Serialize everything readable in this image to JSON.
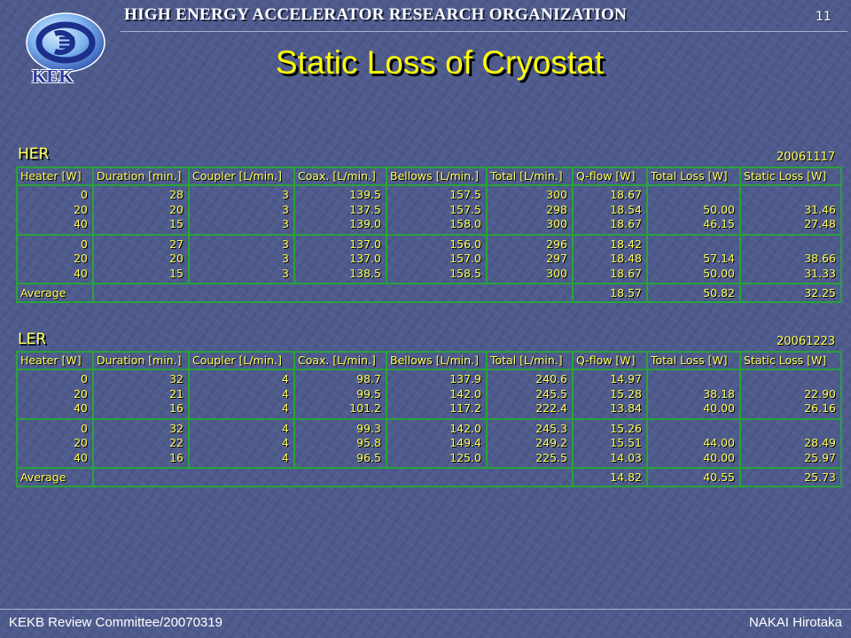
{
  "header": {
    "organization": "HIGH ENERGY ACCELERATOR RESEARCH ORGANIZATION",
    "page_number": "11",
    "logo_text": "KEK"
  },
  "title": "Static Loss of Cryostat",
  "columns": [
    "Heater [W]",
    "Duration [min.]",
    "Coupler [L/min.]",
    "Coax. [L/min.]",
    "Bellows [L/min.]",
    "Total [L/min.]",
    "Q-flow [W]",
    "Total Loss [W]",
    "Static Loss [W]"
  ],
  "her": {
    "label": "HER",
    "date": "20061117",
    "groups": [
      {
        "heater": [
          "0",
          "20",
          "40"
        ],
        "duration": [
          "28",
          "20",
          "15"
        ],
        "coupler": [
          "3",
          "3",
          "3"
        ],
        "coax": [
          "139.5",
          "137.5",
          "139.0"
        ],
        "bellows": [
          "157.5",
          "157.5",
          "158.0"
        ],
        "total": [
          "300",
          "298",
          "300"
        ],
        "qflow": [
          "18.67",
          "18.54",
          "18.67"
        ],
        "total_loss": [
          "",
          "50.00",
          "46.15"
        ],
        "static_loss": [
          "",
          "31.46",
          "27.48"
        ]
      },
      {
        "heater": [
          "0",
          "20",
          "40"
        ],
        "duration": [
          "27",
          "20",
          "15"
        ],
        "coupler": [
          "3",
          "3",
          "3"
        ],
        "coax": [
          "137.0",
          "137.0",
          "138.5"
        ],
        "bellows": [
          "156.0",
          "157.0",
          "158.5"
        ],
        "total": [
          "296",
          "297",
          "300"
        ],
        "qflow": [
          "18.42",
          "18.48",
          "18.67"
        ],
        "total_loss": [
          "",
          "57.14",
          "50.00"
        ],
        "static_loss": [
          "",
          "38.66",
          "31.33"
        ]
      }
    ],
    "average": {
      "label": "Average",
      "qflow": "18.57",
      "total_loss": "50.82",
      "static_loss": "32.25"
    }
  },
  "ler": {
    "label": "LER",
    "date": "20061223",
    "groups": [
      {
        "heater": [
          "0",
          "20",
          "40"
        ],
        "duration": [
          "32",
          "21",
          "16"
        ],
        "coupler": [
          "4",
          "4",
          "4"
        ],
        "coax": [
          "98.7",
          "99.5",
          "101.2"
        ],
        "bellows": [
          "137.9",
          "142.0",
          "117.2"
        ],
        "total": [
          "240.6",
          "245.5",
          "222.4"
        ],
        "qflow": [
          "14.97",
          "15.28",
          "13.84"
        ],
        "total_loss": [
          "",
          "38.18",
          "40.00"
        ],
        "static_loss": [
          "",
          "22.90",
          "26.16"
        ]
      },
      {
        "heater": [
          "0",
          "20",
          "40"
        ],
        "duration": [
          "32",
          "22",
          "16"
        ],
        "coupler": [
          "4",
          "4",
          "4"
        ],
        "coax": [
          "99.3",
          "95.8",
          "96.5"
        ],
        "bellows": [
          "142.0",
          "149.4",
          "125.0"
        ],
        "total": [
          "245.3",
          "249.2",
          "225.5"
        ],
        "qflow": [
          "15.26",
          "15.51",
          "14.03"
        ],
        "total_loss": [
          "",
          "44.00",
          "40.00"
        ],
        "static_loss": [
          "",
          "28.49",
          "25.97"
        ]
      }
    ],
    "average": {
      "label": "Average",
      "qflow": "14.82",
      "total_loss": "40.55",
      "static_loss": "25.73"
    }
  },
  "footer": {
    "left": "KEKB Review Committee/20070319",
    "right": "NAKAI Hirotaka"
  },
  "colors": {
    "background": "#4e5b8c",
    "text": "#ffff55",
    "grid": "#27a33a"
  },
  "icons": {
    "logo": "kek-logo-icon"
  }
}
